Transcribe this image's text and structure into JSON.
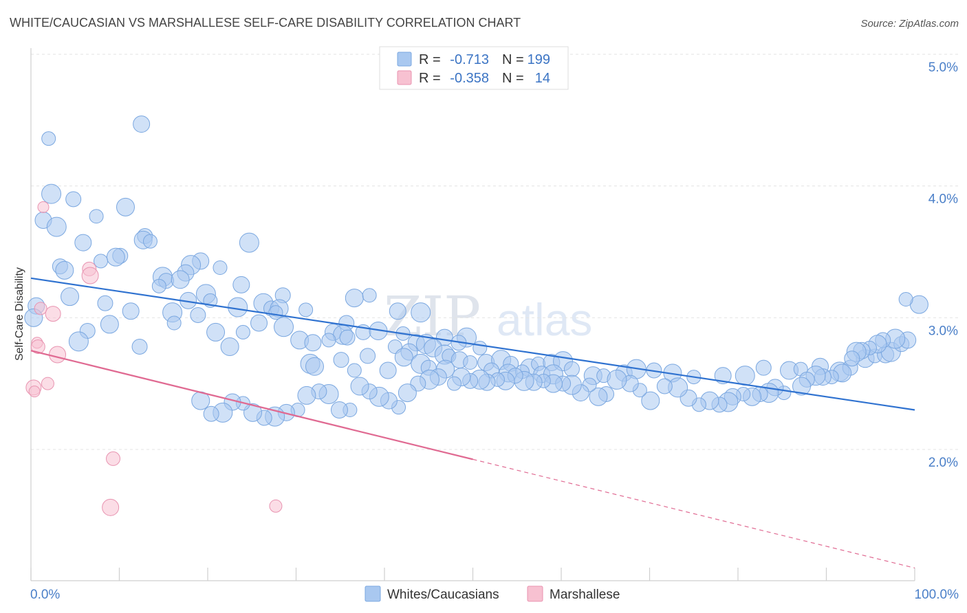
{
  "chart_data": {
    "type": "scatter",
    "title": "WHITE/CAUCASIAN VS MARSHALLESE SELF-CARE DISABILITY CORRELATION CHART",
    "source": "Source: ZipAtlas.com",
    "xlabel": "",
    "ylabel": "Self-Care Disability",
    "xlim": [
      0,
      100
    ],
    "ylim": [
      1.0,
      5.2
    ],
    "x_tick_labels": [
      "0.0%",
      "100.0%"
    ],
    "y_ticks": [
      2.0,
      3.0,
      4.0,
      5.0
    ],
    "y_tick_labels": [
      "2.0%",
      "3.0%",
      "4.0%",
      "5.0%"
    ],
    "watermark": {
      "part1": "ZIP",
      "part2": "atlas"
    },
    "legend": {
      "rows": [
        {
          "r_label": "R =",
          "r_value": "-0.713",
          "n_label": "N =",
          "n_value": "199"
        },
        {
          "r_label": "R =",
          "r_value": "-0.358",
          "n_label": "N =",
          "n_value": "14"
        }
      ]
    },
    "series": [
      {
        "name": "Whites/Caucasians",
        "color": "#a9c8f0",
        "stroke": "#7aa7e0",
        "line_color": "#2f72d0",
        "trend": {
          "x0": 0,
          "y0": 3.3,
          "x1": 100,
          "y1": 2.3,
          "dashed_from": null
        },
        "points": [
          [
            2,
            4.36
          ],
          [
            12.5,
            4.47
          ],
          [
            2.3,
            3.94
          ],
          [
            4.8,
            3.9
          ],
          [
            10.7,
            3.84
          ],
          [
            7.4,
            3.77
          ],
          [
            1.4,
            3.74
          ],
          [
            2.9,
            3.69
          ],
          [
            12.9,
            3.62
          ],
          [
            12.7,
            3.59
          ],
          [
            13.5,
            3.58
          ],
          [
            5.9,
            3.57
          ],
          [
            24.7,
            3.57
          ],
          [
            10.1,
            3.47
          ],
          [
            9.6,
            3.46
          ],
          [
            7.9,
            3.43
          ],
          [
            19.2,
            3.43
          ],
          [
            18.1,
            3.4
          ],
          [
            3.3,
            3.39
          ],
          [
            3.8,
            3.36
          ],
          [
            21.4,
            3.38
          ],
          [
            17.5,
            3.34
          ],
          [
            14.9,
            3.31
          ],
          [
            15.3,
            3.28
          ],
          [
            16.9,
            3.29
          ],
          [
            14.5,
            3.24
          ],
          [
            23.8,
            3.25
          ],
          [
            19.8,
            3.18
          ],
          [
            28.5,
            3.17
          ],
          [
            4.4,
            3.16
          ],
          [
            20.3,
            3.13
          ],
          [
            17.8,
            3.13
          ],
          [
            26.3,
            3.11
          ],
          [
            8.4,
            3.11
          ],
          [
            36.6,
            3.15
          ],
          [
            38.3,
            3.17
          ],
          [
            0.6,
            3.09
          ],
          [
            23.4,
            3.08
          ],
          [
            27.2,
            3.07
          ],
          [
            28.1,
            3.07
          ],
          [
            31.1,
            3.06
          ],
          [
            11.3,
            3.05
          ],
          [
            16,
            3.04
          ],
          [
            18.9,
            3.02
          ],
          [
            0.3,
            3
          ],
          [
            27.7,
            3.04
          ],
          [
            41.5,
            3.05
          ],
          [
            44.1,
            3.04
          ],
          [
            35.7,
            2.96
          ],
          [
            8.9,
            2.95
          ],
          [
            16.2,
            2.96
          ],
          [
            25.8,
            2.96
          ],
          [
            28.6,
            2.93
          ],
          [
            6.4,
            2.9
          ],
          [
            20.9,
            2.89
          ],
          [
            24,
            2.89
          ],
          [
            34.2,
            2.89
          ],
          [
            35.3,
            2.87
          ],
          [
            37.6,
            2.89
          ],
          [
            39.3,
            2.9
          ],
          [
            42.1,
            2.88
          ],
          [
            46.8,
            2.85
          ],
          [
            49.3,
            2.85
          ],
          [
            35.8,
            2.85
          ],
          [
            30.4,
            2.83
          ],
          [
            33.7,
            2.83
          ],
          [
            31.9,
            2.81
          ],
          [
            5.4,
            2.82
          ],
          [
            12.3,
            2.78
          ],
          [
            22.5,
            2.78
          ],
          [
            41.2,
            2.78
          ],
          [
            43.6,
            2.81
          ],
          [
            44.7,
            2.8
          ],
          [
            48.4,
            2.81
          ],
          [
            45.5,
            2.77
          ],
          [
            50.8,
            2.77
          ],
          [
            42.8,
            2.74
          ],
          [
            46.8,
            2.72
          ],
          [
            38.1,
            2.71
          ],
          [
            42.2,
            2.7
          ],
          [
            47.3,
            2.71
          ],
          [
            48.5,
            2.68
          ],
          [
            31.6,
            2.65
          ],
          [
            35.1,
            2.68
          ],
          [
            32.1,
            2.63
          ],
          [
            36.6,
            2.6
          ],
          [
            40.4,
            2.6
          ],
          [
            44.1,
            2.65
          ],
          [
            45,
            2.62
          ],
          [
            46.9,
            2.61
          ],
          [
            49.7,
            2.66
          ],
          [
            51.5,
            2.66
          ],
          [
            53.2,
            2.68
          ],
          [
            54.3,
            2.65
          ],
          [
            56.4,
            2.62
          ],
          [
            57.4,
            2.65
          ],
          [
            58.9,
            2.66
          ],
          [
            60.2,
            2.67
          ],
          [
            52.1,
            2.6
          ],
          [
            54,
            2.58
          ],
          [
            55.6,
            2.59
          ],
          [
            57.8,
            2.57
          ],
          [
            59.1,
            2.57
          ],
          [
            61.2,
            2.61
          ],
          [
            63.6,
            2.56
          ],
          [
            64.8,
            2.56
          ],
          [
            67.1,
            2.58
          ],
          [
            68.5,
            2.61
          ],
          [
            70.5,
            2.6
          ],
          [
            72.6,
            2.58
          ],
          [
            75,
            2.55
          ],
          [
            78.3,
            2.56
          ],
          [
            80.8,
            2.56
          ],
          [
            82.9,
            2.62
          ],
          [
            85.8,
            2.6
          ],
          [
            87.1,
            2.61
          ],
          [
            89.3,
            2.63
          ],
          [
            91.5,
            2.59
          ],
          [
            92.7,
            2.62
          ],
          [
            94.4,
            2.69
          ],
          [
            95.5,
            2.71
          ],
          [
            96.7,
            2.72
          ],
          [
            97.3,
            2.74
          ],
          [
            98.5,
            2.8
          ],
          [
            100.5,
            3.1
          ],
          [
            99,
            3.14
          ],
          [
            99.2,
            2.83
          ],
          [
            97.8,
            2.84
          ],
          [
            96.4,
            2.83
          ],
          [
            95.8,
            2.8
          ],
          [
            94.9,
            2.77
          ],
          [
            94,
            2.75
          ],
          [
            93.4,
            2.74
          ],
          [
            92.9,
            2.69
          ],
          [
            91.8,
            2.58
          ],
          [
            90.6,
            2.55
          ],
          [
            89.6,
            2.55
          ],
          [
            88.8,
            2.56
          ],
          [
            87.8,
            2.53
          ],
          [
            87.2,
            2.48
          ],
          [
            85.2,
            2.43
          ],
          [
            84.2,
            2.47
          ],
          [
            83.5,
            2.43
          ],
          [
            82.5,
            2.42
          ],
          [
            81.6,
            2.4
          ],
          [
            80.6,
            2.42
          ],
          [
            79.4,
            2.4
          ],
          [
            78.9,
            2.36
          ],
          [
            77.9,
            2.34
          ],
          [
            76.8,
            2.37
          ],
          [
            75.6,
            2.34
          ],
          [
            74.4,
            2.39
          ],
          [
            73.2,
            2.47
          ],
          [
            71.7,
            2.48
          ],
          [
            70.1,
            2.37
          ],
          [
            68.9,
            2.45
          ],
          [
            67.8,
            2.5
          ],
          [
            66.3,
            2.53
          ],
          [
            65.1,
            2.42
          ],
          [
            64.2,
            2.4
          ],
          [
            63.2,
            2.49
          ],
          [
            62.2,
            2.43
          ],
          [
            61.2,
            2.49
          ],
          [
            60.2,
            2.5
          ],
          [
            59.1,
            2.5
          ],
          [
            58,
            2.52
          ],
          [
            56.9,
            2.51
          ],
          [
            55.8,
            2.52
          ],
          [
            54.8,
            2.56
          ],
          [
            53.7,
            2.52
          ],
          [
            52.8,
            2.53
          ],
          [
            51.6,
            2.51
          ],
          [
            50.8,
            2.53
          ],
          [
            49.7,
            2.52
          ],
          [
            48.7,
            2.55
          ],
          [
            47.9,
            2.5
          ],
          [
            46.1,
            2.55
          ],
          [
            45.1,
            2.53
          ],
          [
            43.8,
            2.5
          ],
          [
            42.6,
            2.43
          ],
          [
            41.6,
            2.32
          ],
          [
            40.5,
            2.37
          ],
          [
            39.4,
            2.4
          ],
          [
            38.3,
            2.44
          ],
          [
            37.2,
            2.48
          ],
          [
            36.1,
            2.3
          ],
          [
            34.9,
            2.3
          ],
          [
            33.7,
            2.42
          ],
          [
            32.6,
            2.44
          ],
          [
            31.2,
            2.41
          ],
          [
            30.2,
            2.3
          ],
          [
            28.9,
            2.28
          ],
          [
            27.6,
            2.25
          ],
          [
            26.4,
            2.24
          ],
          [
            25.1,
            2.28
          ],
          [
            24,
            2.35
          ],
          [
            22.8,
            2.36
          ],
          [
            21.7,
            2.28
          ],
          [
            20.4,
            2.27
          ],
          [
            19.2,
            2.37
          ]
        ]
      },
      {
        "name": "Marshallese",
        "color": "#f7c1d1",
        "stroke": "#e893b0",
        "line_color": "#e06a92",
        "trend": {
          "x0": 0,
          "y0": 2.75,
          "x1": 100,
          "y1": 1.1,
          "dashed_from": 50
        },
        "points": [
          [
            1.4,
            3.84
          ],
          [
            6.6,
            3.37
          ],
          [
            6.7,
            3.32
          ],
          [
            1.1,
            3.07
          ],
          [
            2.5,
            3.03
          ],
          [
            0.7,
            2.81
          ],
          [
            0.8,
            2.78
          ],
          [
            3,
            2.72
          ],
          [
            1.9,
            2.5
          ],
          [
            0.3,
            2.47
          ],
          [
            0.4,
            2.44
          ],
          [
            9.3,
            1.93
          ],
          [
            9,
            1.56
          ],
          [
            27.7,
            1.57
          ]
        ]
      }
    ]
  }
}
